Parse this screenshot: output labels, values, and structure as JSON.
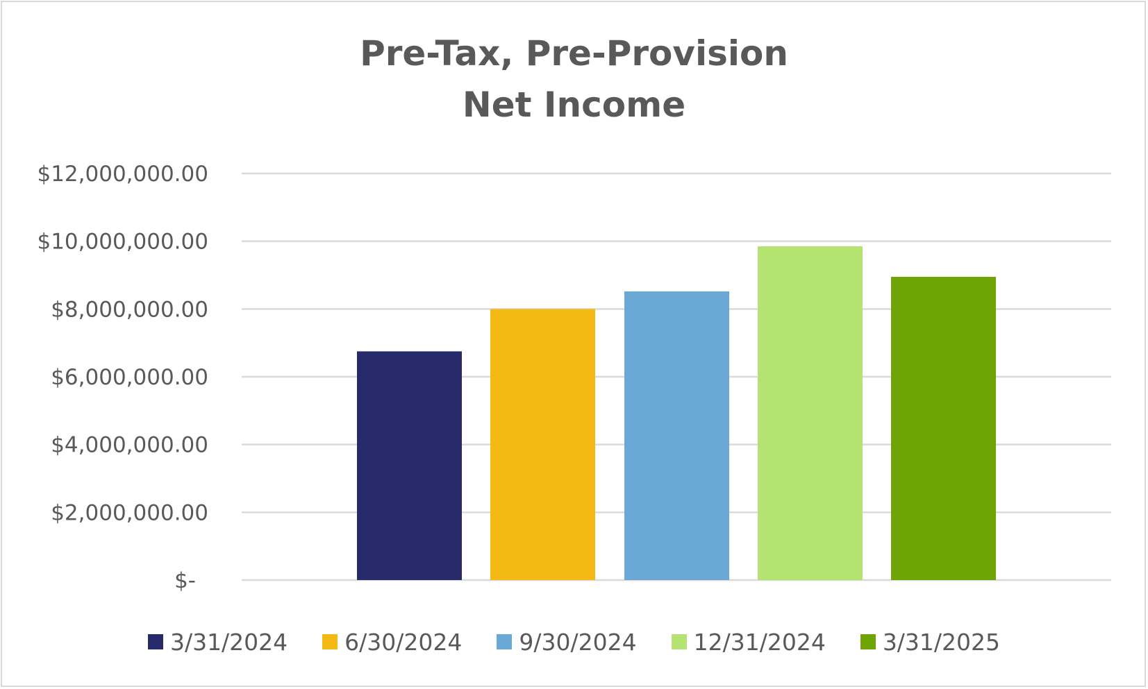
{
  "chart_data": {
    "type": "bar",
    "title": "Pre-Tax, Pre-Provision",
    "subtitle": "Net Income",
    "categories": [
      "3/31/2024",
      "6/30/2024",
      "9/30/2024",
      "12/31/2024",
      "3/31/2025"
    ],
    "values": [
      6750000,
      8000000,
      8520000,
      9850000,
      8950000
    ],
    "colors": [
      "#262a6b",
      "#f5b915",
      "#6aa8d6",
      "#b5e372",
      "#6ea505"
    ],
    "ylim": [
      0,
      12000000
    ],
    "yticks": [
      0,
      2000000,
      4000000,
      6000000,
      8000000,
      10000000,
      12000000
    ],
    "ytick_labels": [
      "$-",
      "$2,000,000.00",
      "$4,000,000.00",
      "$6,000,000.00",
      "$8,000,000.00",
      "$10,000,000.00",
      "$12,000,000.00"
    ],
    "grid": true,
    "legend_position": "bottom",
    "xlabel": "",
    "ylabel": ""
  }
}
